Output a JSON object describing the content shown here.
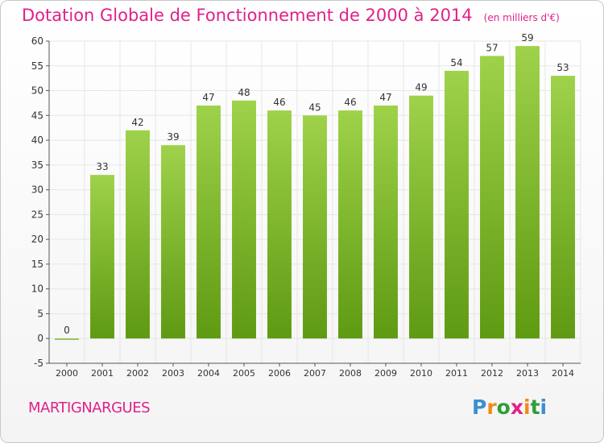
{
  "header": {
    "title": "Dotation Globale de Fonctionnement de 2000 à 2014",
    "subtitle": "(en milliers d'€)"
  },
  "footer": {
    "commune": "MARTIGNARGUES",
    "logo_text": "Proxiti"
  },
  "colors": {
    "title": "#e0218a",
    "bar_top": "#9ed24a",
    "bar_bottom": "#5e9a12",
    "grid": "#e6e6e6",
    "axis": "#555555",
    "logo": [
      "#3a8fd4",
      "#f08a1c",
      "#2f9e3a",
      "#e0218a",
      "#f08a1c",
      "#2f9e3a",
      "#3a8fd4"
    ]
  },
  "chart_data": {
    "type": "bar",
    "title": "Dotation Globale de Fonctionnement de 2000 à 2014",
    "subtitle": "(en milliers d'€)",
    "xlabel": "",
    "ylabel": "",
    "categories": [
      "2000",
      "2001",
      "2002",
      "2003",
      "2004",
      "2005",
      "2006",
      "2007",
      "2008",
      "2009",
      "2010",
      "2011",
      "2012",
      "2013",
      "2014"
    ],
    "values": [
      0,
      33,
      42,
      39,
      47,
      48,
      46,
      45,
      46,
      47,
      49,
      54,
      57,
      59,
      53
    ],
    "ylim": [
      -5,
      60
    ],
    "yticks": [
      -5,
      0,
      5,
      10,
      15,
      20,
      25,
      30,
      35,
      40,
      45,
      50,
      55,
      60
    ],
    "grid": true,
    "legend": "none"
  }
}
